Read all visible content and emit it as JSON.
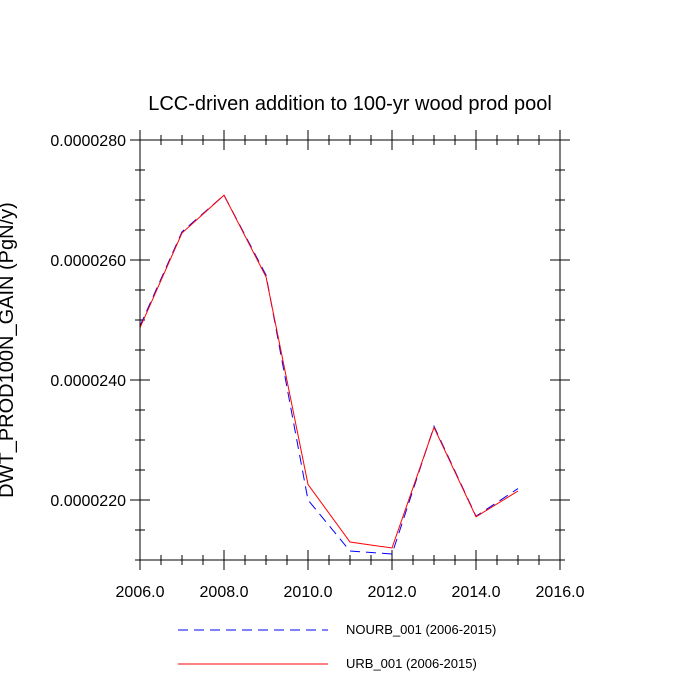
{
  "chart_data": {
    "type": "line",
    "title": "LCC-driven addition to 100-yr wood prod pool",
    "ylabel": "DWT_PROD100N_GAIN (PgN/y)",
    "xlabel": "",
    "xlim": [
      2006.0,
      2016.0
    ],
    "ylim": [
      2.1e-05,
      2.8e-05
    ],
    "x_ticks": [
      2006.0,
      2008.0,
      2010.0,
      2012.0,
      2014.0,
      2016.0
    ],
    "x_tick_labels": [
      "2006.0",
      "2008.0",
      "2010.0",
      "2012.0",
      "2014.0",
      "2016.0"
    ],
    "y_ticks": [
      2.2e-05,
      2.4e-05,
      2.6e-05,
      2.8e-05
    ],
    "y_tick_labels": [
      "0.0000220",
      "0.0000240",
      "0.0000260",
      "0.0000280"
    ],
    "grid": false,
    "legend_position": "bottom",
    "x": [
      2006,
      2007,
      2008,
      2009,
      2010,
      2011,
      2012,
      2013,
      2014,
      2015
    ],
    "series": [
      {
        "name": "NOURB_001 (2006-2015)",
        "color": "#0000ff",
        "style": "dashed",
        "values": [
          2.49e-05,
          2.647e-05,
          2.708e-05,
          2.575e-05,
          2.2e-05,
          2.115e-05,
          2.11e-05,
          2.323e-05,
          2.173e-05,
          2.219e-05
        ]
      },
      {
        "name": "URB_001 (2006-2015)",
        "color": "#ff0000",
        "style": "solid",
        "values": [
          2.487e-05,
          2.645e-05,
          2.708e-05,
          2.572e-05,
          2.226e-05,
          2.13e-05,
          2.12e-05,
          2.321e-05,
          2.172e-05,
          2.215e-05
        ]
      }
    ]
  }
}
